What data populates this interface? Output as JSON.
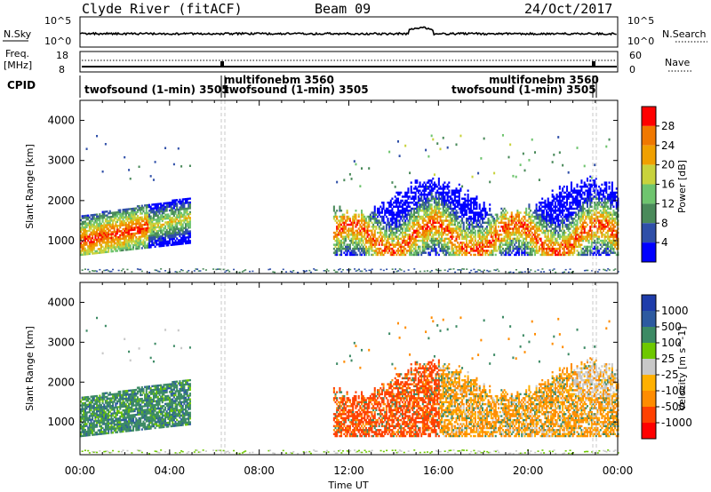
{
  "header": {
    "station": "Clyde River (fitACF)",
    "beam": "Beam 09",
    "date": "24/Oct/2017"
  },
  "strip_nsky": {
    "left_label": "N.Sky",
    "right_label": "N.Search",
    "left_ticks": [
      "10^5",
      "10^0"
    ],
    "right_ticks": [
      "10^5",
      "10^0"
    ]
  },
  "strip_freq": {
    "left_label_1": "Freq.",
    "left_label_2": "[MHz]",
    "right_label": "Nave",
    "left_ticks": [
      "18",
      "8"
    ],
    "right_ticks": [
      "60",
      "0"
    ]
  },
  "cpid": {
    "label": "CPID",
    "entries": [
      {
        "text": "twofsound (1-min)  3505"
      },
      {
        "text": "multifonebm  3560"
      },
      {
        "text": "twofsound (1-min)  3505"
      },
      {
        "text": "multifonebm  3560"
      },
      {
        "text": "twofsound (1-min)  3505"
      }
    ]
  },
  "colors": {
    "power": [
      "#0000ff",
      "#2f4fa8",
      "#4a8a5a",
      "#6ec46e",
      "#c8d23c",
      "#f0a000",
      "#f07800",
      "#ff0000"
    ],
    "velocity": [
      "#ff0000",
      "#ff4000",
      "#ff8c00",
      "#ffb000",
      "#c8c8c8",
      "#6ec800",
      "#3c8a64",
      "#2d5aa0",
      "#1e3caa"
    ]
  },
  "chart_data": [
    {
      "type": "heatmap",
      "title": "",
      "xlabel": "",
      "ylabel": "Slant Range [km]",
      "xlim": [
        "00:00",
        "24:00"
      ],
      "ylim": [
        180,
        4500
      ],
      "x_ticks": [
        "00:00",
        "04:00",
        "08:00",
        "12:00",
        "16:00",
        "20:00",
        "00:00"
      ],
      "y_ticks": [
        1000,
        2000,
        3000,
        4000
      ],
      "colorbar": {
        "label": "Power [dB]",
        "ticks": [
          "28",
          "24",
          "20",
          "16",
          "12",
          "8",
          "4"
        ],
        "range": [
          0,
          32
        ]
      },
      "echo_regions": [
        {
          "t_start_h": 0.0,
          "t_end_h": 4.9,
          "range_km": [
            600,
            2200
          ],
          "power_db": [
            4,
            30
          ]
        },
        {
          "t_start_h": 11.3,
          "t_end_h": 24.0,
          "range_km": [
            600,
            2400
          ],
          "power_db": [
            4,
            30
          ]
        },
        {
          "t_start_h": 0.0,
          "t_end_h": 24.0,
          "range_km": [
            180,
            300
          ],
          "power_db": [
            4,
            12
          ]
        }
      ]
    },
    {
      "type": "heatmap",
      "title": "",
      "xlabel": "Time UT",
      "ylabel": "Slant Range [km]",
      "xlim": [
        "00:00",
        "24:00"
      ],
      "ylim": [
        180,
        4500
      ],
      "x_ticks": [
        "00:00",
        "04:00",
        "08:00",
        "12:00",
        "16:00",
        "20:00",
        "00:00"
      ],
      "y_ticks": [
        1000,
        2000,
        3000,
        4000
      ],
      "colorbar": {
        "label": "Velocity [m s^-1]",
        "ticks": [
          "1000",
          "500",
          "100",
          "25",
          "-25",
          "-100",
          "-500",
          "-1000"
        ]
      },
      "echo_regions": [
        {
          "t_start_h": 0.0,
          "t_end_h": 4.9,
          "range_km": [
            600,
            2200
          ],
          "velocity": "mostly positive (100 to 500)"
        },
        {
          "t_start_h": 11.3,
          "t_end_h": 24.0,
          "range_km": [
            600,
            2400
          ],
          "velocity": "mostly negative (-100 to -500)"
        }
      ]
    }
  ]
}
